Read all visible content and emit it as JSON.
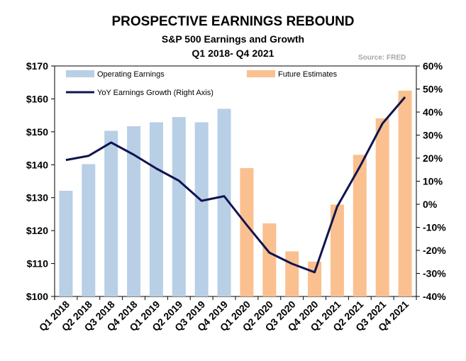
{
  "chart_data": {
    "type": "bar",
    "title": "PROSPECTIVE EARNINGS REBOUND",
    "subtitle": "S&P 500 Earnings and Growth",
    "subtitle2": "Q1 2018- Q4 2021",
    "source": "Source: FRED",
    "categories": [
      "Q1 2018",
      "Q2 2018",
      "Q3 2018",
      "Q4 2018",
      "Q1 2019",
      "Q2 2019",
      "Q3 2019",
      "Q4 2019",
      "Q1 2020",
      "Q2 2020",
      "Q3 2020",
      "Q4 2020",
      "Q1 2021",
      "Q2 2021",
      "Q3 2021",
      "Q4 2021"
    ],
    "series": [
      {
        "name": "Operating Earnings",
        "kind": "bar",
        "axis": "left",
        "color": "#b8cfe6",
        "values": [
          132.1,
          140.2,
          150.3,
          151.7,
          152.9,
          154.5,
          152.9,
          157.0,
          null,
          null,
          null,
          null,
          null,
          null,
          null,
          null
        ]
      },
      {
        "name": "Future Estimates",
        "kind": "bar",
        "axis": "left",
        "color": "#fbc08f",
        "values": [
          null,
          null,
          null,
          null,
          null,
          null,
          null,
          null,
          139.0,
          122.2,
          113.7,
          110.6,
          127.9,
          143.0,
          154.1,
          162.5
        ]
      },
      {
        "name": "YoY Earnings Growth (Right Axis)",
        "kind": "line",
        "axis": "right",
        "color": "#10144f",
        "values": [
          19.2,
          21.0,
          26.8,
          21.5,
          15.5,
          10.2,
          1.5,
          3.5,
          -9.0,
          -21.0,
          -25.8,
          -29.5,
          -1.0,
          16.3,
          35.0,
          46.5
        ]
      }
    ],
    "left_axis": {
      "min": 100,
      "max": 170,
      "step": 10,
      "ticks": [
        "$100",
        "$110",
        "$120",
        "$130",
        "$140",
        "$150",
        "$160",
        "$170"
      ]
    },
    "right_axis": {
      "min": -40,
      "max": 60,
      "step": 10,
      "ticks": [
        "-40%",
        "-30%",
        "-20%",
        "-10%",
        "0%",
        "10%",
        "20%",
        "30%",
        "40%",
        "50%",
        "60%"
      ]
    },
    "legend": "top",
    "grid": false
  }
}
